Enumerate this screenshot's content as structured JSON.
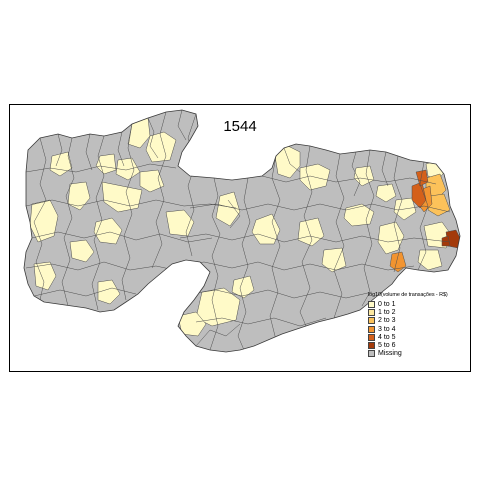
{
  "map": {
    "title": "1544",
    "legend": {
      "title": "log10(volume de transações - R$)",
      "items": [
        {
          "label": "0 to 1",
          "color": "#fffac8"
        },
        {
          "label": "1 to 2",
          "color": "#fde8a0"
        },
        {
          "label": "2 to 3",
          "color": "#fcc25a"
        },
        {
          "label": "3 to 4",
          "color": "#f29430"
        },
        {
          "label": "4 to 5",
          "color": "#d4601a"
        },
        {
          "label": "5 to 6",
          "color": "#a33a0a"
        },
        {
          "label": "Missing",
          "color": "#bebebe"
        }
      ]
    },
    "colors": {
      "missing": "#bebebe",
      "class_0_1": "#fffac8",
      "class_1_2": "#fde8a0",
      "class_2_3": "#fcc25a",
      "class_3_4": "#f29430",
      "class_4_5": "#d4601a",
      "class_5_6": "#a33a0a",
      "border": "#4d4d4d"
    }
  }
}
